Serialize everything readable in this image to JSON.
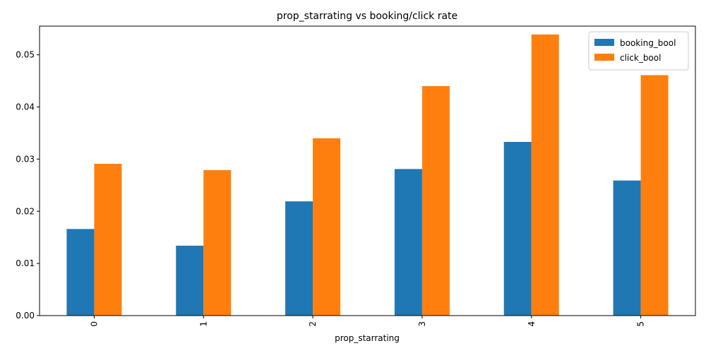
{
  "chart_data": {
    "type": "bar",
    "title": "prop_starrating vs booking/click rate",
    "xlabel": "prop_starrating",
    "ylabel": "",
    "categories": [
      "0",
      "1",
      "2",
      "3",
      "4",
      "5"
    ],
    "series": [
      {
        "name": "booking_bool",
        "color": "#1f77b4",
        "values": [
          0.0166,
          0.0134,
          0.0219,
          0.0281,
          0.0333,
          0.0259
        ]
      },
      {
        "name": "click_bool",
        "color": "#ff7f0e",
        "values": [
          0.0291,
          0.0279,
          0.034,
          0.044,
          0.0539,
          0.0461
        ]
      }
    ],
    "ylim": [
      0,
      0.0555
    ],
    "yticks": [
      "0.00",
      "0.01",
      "0.02",
      "0.03",
      "0.04",
      "0.05"
    ],
    "legend_position": "top-right",
    "grid": false
  }
}
